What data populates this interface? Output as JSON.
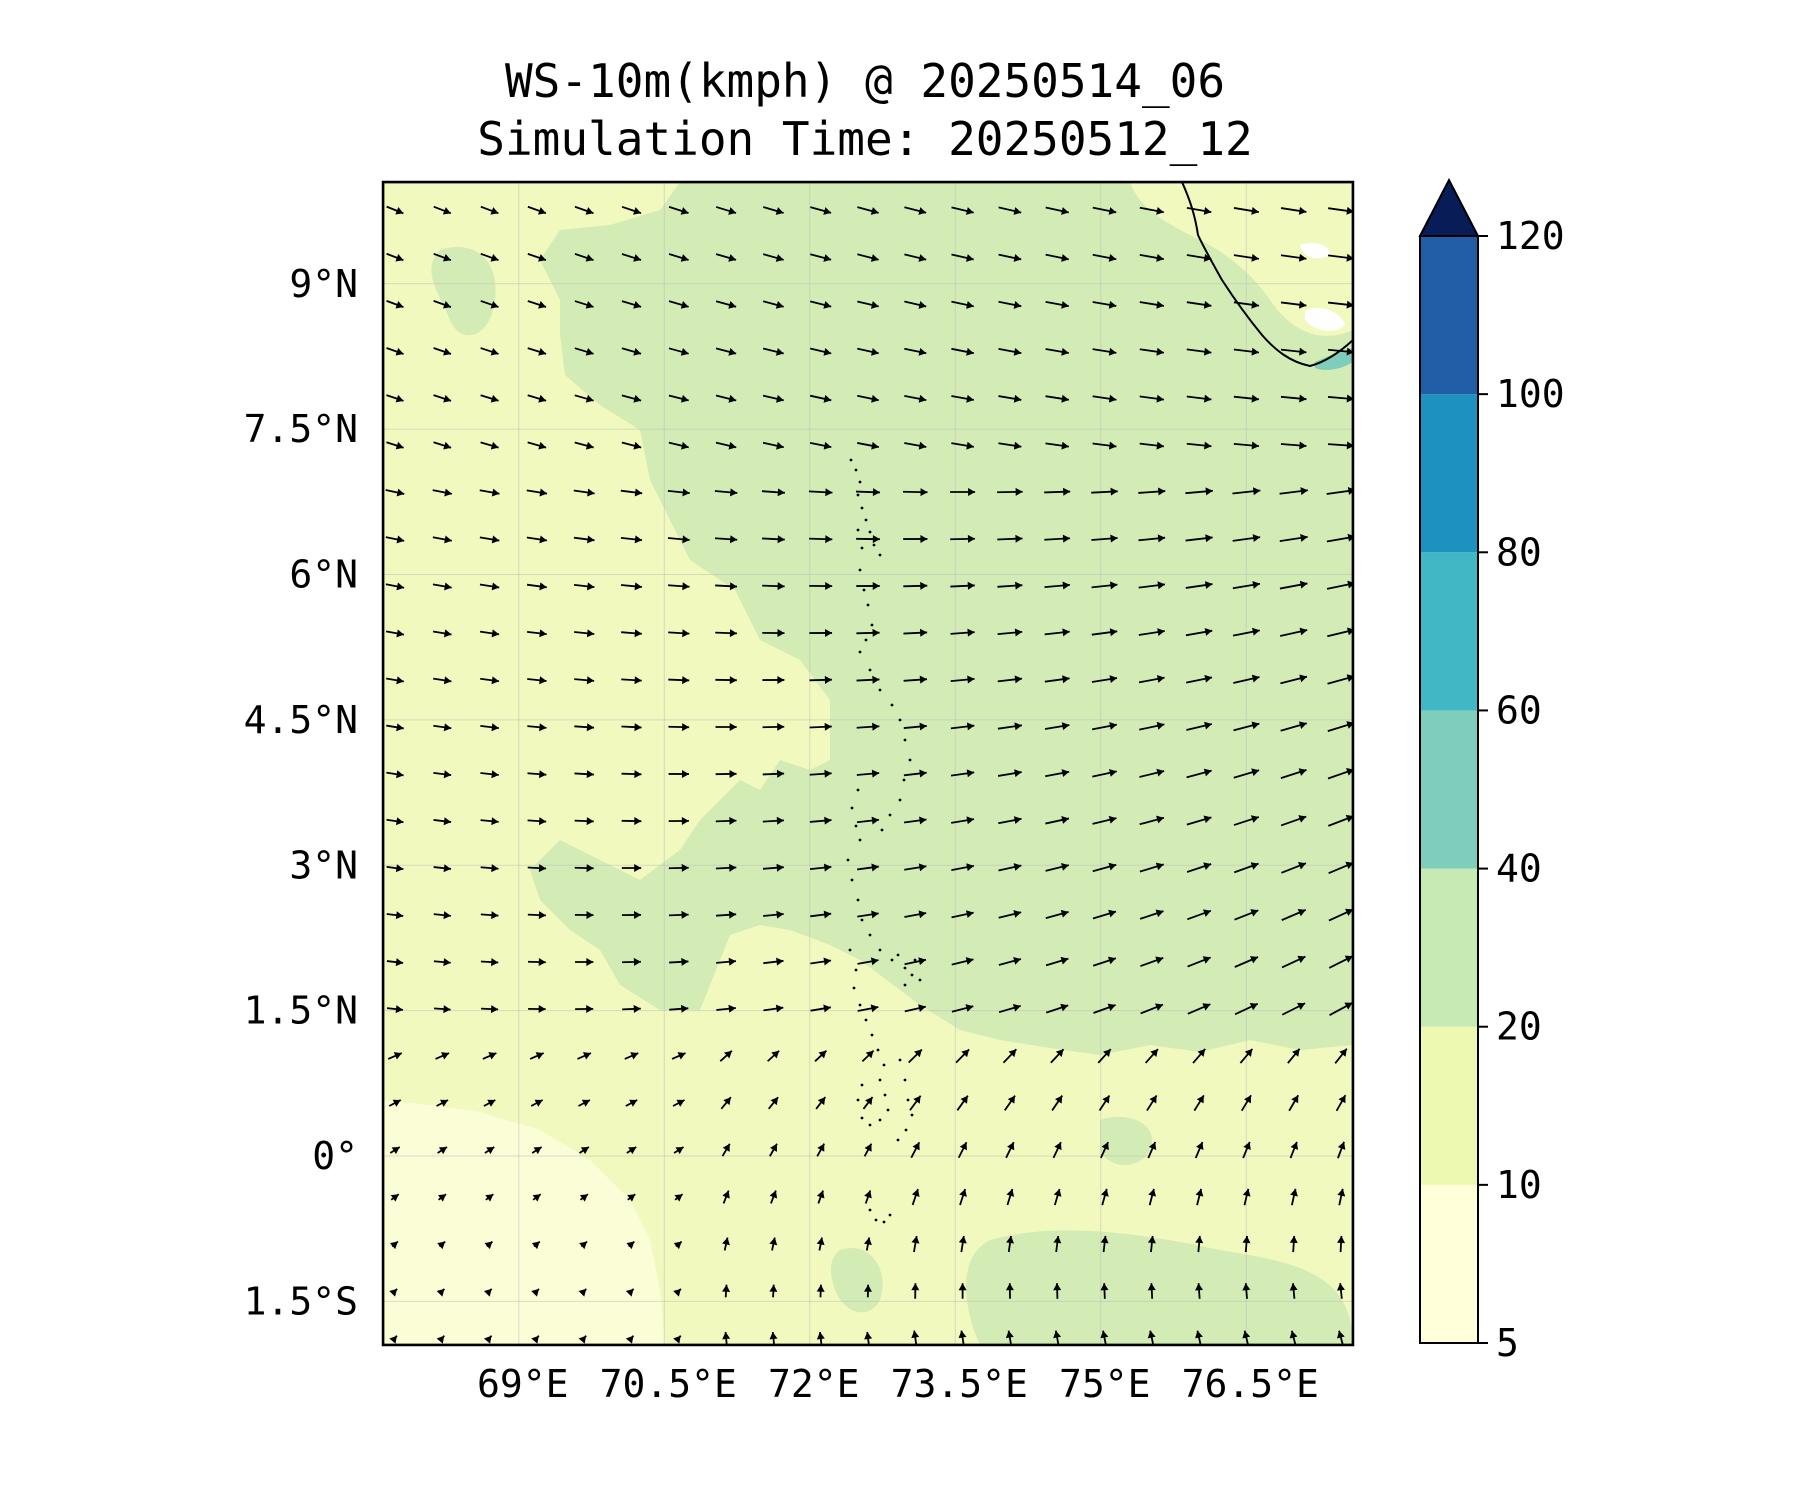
{
  "title": {
    "line1": "WS-10m(kmph) @ 20250514_06",
    "line2": "Simulation Time: 20250512_12"
  },
  "map": {
    "lon_range": [
      67.6,
      77.6
    ],
    "lat_range": [
      -1.95,
      10.05
    ],
    "lat_ticks": [
      {
        "value": 9,
        "label": "9°N"
      },
      {
        "value": 7.5,
        "label": "7.5°N"
      },
      {
        "value": 6,
        "label": "6°N"
      },
      {
        "value": 4.5,
        "label": "4.5°N"
      },
      {
        "value": 3,
        "label": "3°N"
      },
      {
        "value": 1.5,
        "label": "1.5°N"
      },
      {
        "value": 0,
        "label": "0°"
      },
      {
        "value": -1.5,
        "label": "1.5°S"
      }
    ],
    "lon_ticks": [
      {
        "value": 69,
        "label": "69°E"
      },
      {
        "value": 70.5,
        "label": "70.5°E"
      },
      {
        "value": 72,
        "label": "72°E"
      },
      {
        "value": 73.5,
        "label": "73.5°E"
      },
      {
        "value": 75,
        "label": "75°E"
      },
      {
        "value": 76.5,
        "label": "76.5°E"
      }
    ]
  },
  "colorbar": {
    "levels": [
      5,
      10,
      20,
      40,
      60,
      80,
      100,
      120
    ],
    "colors": [
      "#ffffd9",
      "#edf8b1",
      "#c7e9b4",
      "#7fcdbb",
      "#41b6c4",
      "#1d91c0",
      "#225ea8",
      "#0c2c84"
    ],
    "extend_color": "#081d58",
    "tick_labels": [
      "5",
      "10",
      "20",
      "40",
      "60",
      "80",
      "100",
      "120"
    ]
  },
  "colors": {
    "calm": "#ffffd9",
    "light": "#f1f9be",
    "moderate": "#d3ecb5"
  }
}
